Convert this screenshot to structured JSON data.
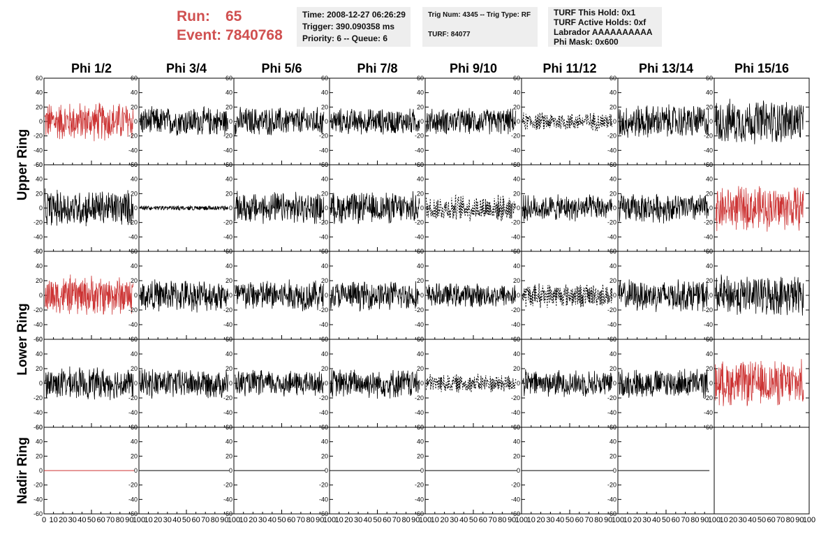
{
  "header": {
    "run_label": "Run:",
    "run_value": "65",
    "event_label": "Event:",
    "event_value": "7840768",
    "box1": [
      "Time: 2008-12-27 06:26:29",
      "Trigger: 390.090358 ms",
      "Priority: 6 -- Queue: 6"
    ],
    "box2": [
      "Trig Num: 4345 -- Trig Type: RF",
      "",
      "TURF: 84077"
    ],
    "box3": [
      "TURF This Hold: 0x1",
      "TURF Active Holds: 0xf",
      "Labrador AAAAAAAAAA",
      "Phi Mask: 0x600"
    ]
  },
  "colors": {
    "run_text": "#d05050",
    "trace_red": "#cc3333",
    "trace_black": "#000000",
    "box_bg": "#eeeeee"
  },
  "chart_data": {
    "type": "line",
    "columns": [
      "Phi 1/2",
      "Phi 3/4",
      "Phi 5/6",
      "Phi 7/8",
      "Phi 9/10",
      "Phi 11/12",
      "Phi 13/14",
      "Phi 15/16"
    ],
    "rows": [
      {
        "title": "Upper Ring",
        "sub_rows": 2
      },
      {
        "title": "Lower Ring",
        "sub_rows": 2
      },
      {
        "title": "Nadir Ring",
        "sub_rows": 1
      }
    ],
    "y_ticks": [
      "60",
      "40",
      "20",
      "0",
      "-20",
      "-40",
      "-60"
    ],
    "ylim": [
      -60,
      60
    ],
    "x_ticks": [
      "0",
      "10",
      "20",
      "30",
      "40",
      "50",
      "60",
      "70",
      "80",
      "90",
      "100"
    ],
    "xlim": [
      0,
      100
    ],
    "panels": [
      [
        "red",
        "black",
        "black",
        "black",
        "black",
        "dashed",
        "black",
        "black"
      ],
      [
        "black",
        "flat",
        "black",
        "black",
        "dashed",
        "black",
        "black",
        "red"
      ],
      [
        "red",
        "black",
        "black",
        "black",
        "black",
        "dashed",
        "black",
        "black"
      ],
      [
        "black",
        "black",
        "black",
        "black",
        "dashed",
        "black",
        "black",
        "red"
      ],
      [
        "nadir-red",
        "nadir",
        "nadir",
        "nadir",
        "nadir",
        "nadir",
        "nadir",
        "empty"
      ]
    ],
    "amplitudes": [
      [
        30,
        22,
        22,
        20,
        20,
        14,
        26,
        34
      ],
      [
        28,
        3,
        24,
        24,
        20,
        20,
        22,
        34
      ],
      [
        30,
        24,
        24,
        22,
        18,
        18,
        24,
        30
      ],
      [
        24,
        22,
        20,
        22,
        14,
        20,
        22,
        34
      ],
      [
        0,
        0,
        0,
        0,
        0,
        0,
        0,
        0
      ]
    ],
    "nadir_value": 0
  }
}
